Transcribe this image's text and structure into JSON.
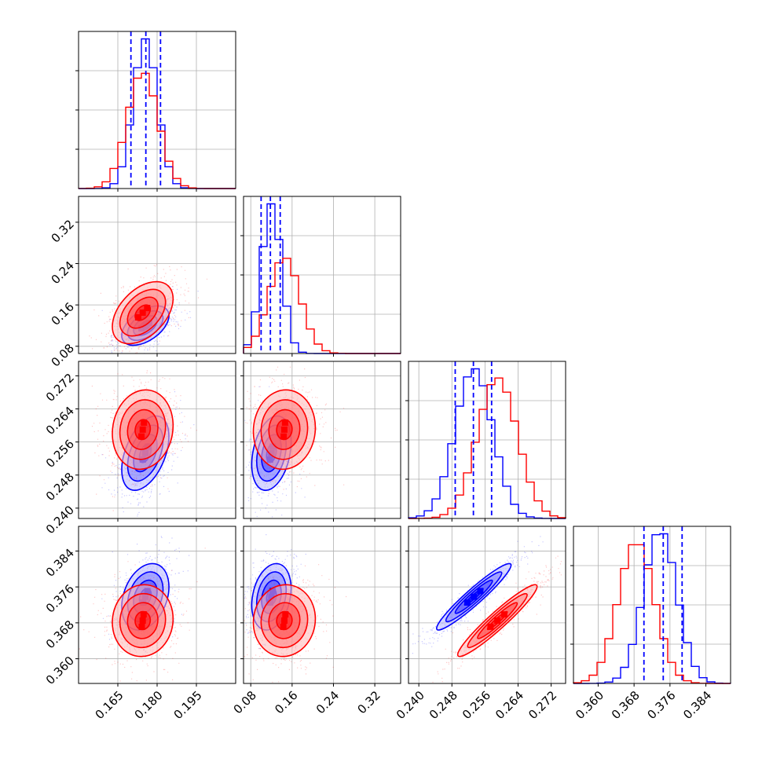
{
  "colors": {
    "blue": "#0000ff",
    "red": "#ff0000",
    "grid": "#b0b0b0",
    "frame": "#000000"
  },
  "chart_data": {
    "type": "corner",
    "n_params": 4,
    "grid": true,
    "legend": "none",
    "params": [
      {
        "range": [
          0.15,
          0.21
        ],
        "ticks": [
          0.165,
          0.18,
          0.195
        ],
        "tick_labels": [
          "0.165",
          "0.180",
          "0.195"
        ]
      },
      {
        "range": [
          0.066,
          0.37
        ],
        "ticks": [
          0.08,
          0.16,
          0.24,
          0.32
        ],
        "tick_labels": [
          "0.08",
          "0.16",
          "0.24",
          "0.32"
        ]
      },
      {
        "range": [
          0.2375,
          0.2755
        ],
        "ticks": [
          0.24,
          0.248,
          0.256,
          0.264,
          0.272
        ],
        "tick_labels": [
          "0.240",
          "0.248",
          "0.256",
          "0.264",
          "0.272"
        ]
      },
      {
        "range": [
          0.3545,
          0.3895
        ],
        "ticks": [
          0.36,
          0.368,
          0.376,
          0.384
        ],
        "tick_labels": [
          "0.360",
          "0.368",
          "0.376",
          "0.384"
        ]
      }
    ],
    "series": [
      {
        "color": "#0000ff",
        "mean": [
          0.1755,
          0.12,
          0.2533,
          0.3738
        ],
        "sd": [
          0.0045,
          0.019,
          0.0045,
          0.0037
        ],
        "quantiles_dashed": [
          [
            0.17,
            0.1757,
            0.1813
          ],
          [
            0.1,
            0.118,
            0.137
          ],
          [
            0.2488,
            0.2532,
            0.2576
          ],
          [
            0.3702,
            0.3745,
            0.3787
          ]
        ],
        "corr": [
          [
            1,
            0.5,
            0.45,
            0.3
          ],
          [
            0.5,
            1,
            0.3,
            0.25
          ],
          [
            0.45,
            0.3,
            1,
            0.95
          ],
          [
            0.3,
            0.25,
            0.95,
            1
          ]
        ]
      },
      {
        "color": "#ff0000",
        "mean": [
          0.1745,
          0.145,
          0.259,
          0.3685
        ],
        "sd": [
          0.0058,
          0.03,
          0.0048,
          0.004
        ],
        "quantiles_dashed": [],
        "corr": [
          [
            1,
            0.45,
            0.1,
            0.05
          ],
          [
            0.45,
            1,
            0.05,
            0.05
          ],
          [
            0.1,
            0.05,
            1,
            0.95
          ],
          [
            0.05,
            0.05,
            0.95,
            1
          ]
        ]
      }
    ]
  }
}
